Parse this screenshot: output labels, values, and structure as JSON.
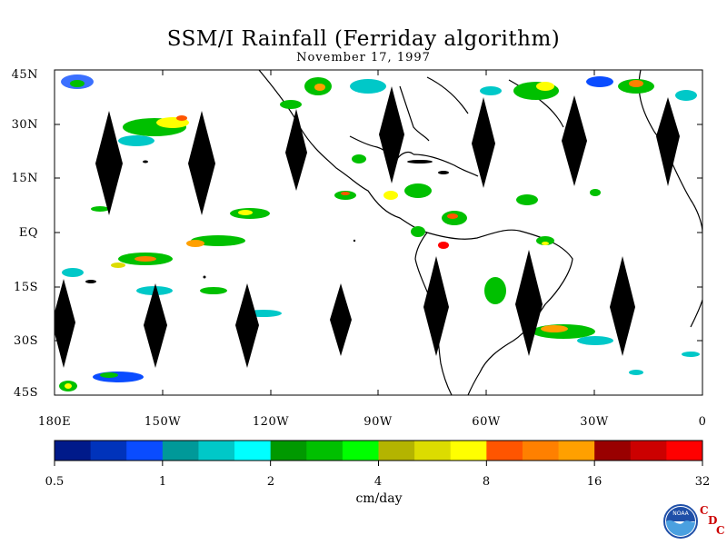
{
  "title": "SSM/I Rainfall (Ferriday algorithm)",
  "subtitle": "November 17, 1997",
  "lat_labels": [
    "45N",
    "30N",
    "15N",
    "EQ",
    "15S",
    "30S",
    "45S"
  ],
  "lon_labels": [
    "180E",
    "150W",
    "120W",
    "90W",
    "60W",
    "30W",
    "0"
  ],
  "colorbar": {
    "colors": [
      "#001a8a",
      "#0033bb",
      "#0a4cff",
      "#009999",
      "#00c8c8",
      "#00ffff",
      "#009900",
      "#00c000",
      "#00ff00",
      "#b4b400",
      "#dcdc00",
      "#ffff00",
      "#ff5500",
      "#ff8000",
      "#ffa000",
      "#990000",
      "#cc0000",
      "#ff0000"
    ],
    "tick_labels": [
      "0.5",
      "1",
      "2",
      "4",
      "8",
      "16",
      "32"
    ],
    "units": "cm/day"
  },
  "logo": {
    "text": "NOAA",
    "cdc_letters": [
      "C",
      "D",
      "C"
    ]
  }
}
